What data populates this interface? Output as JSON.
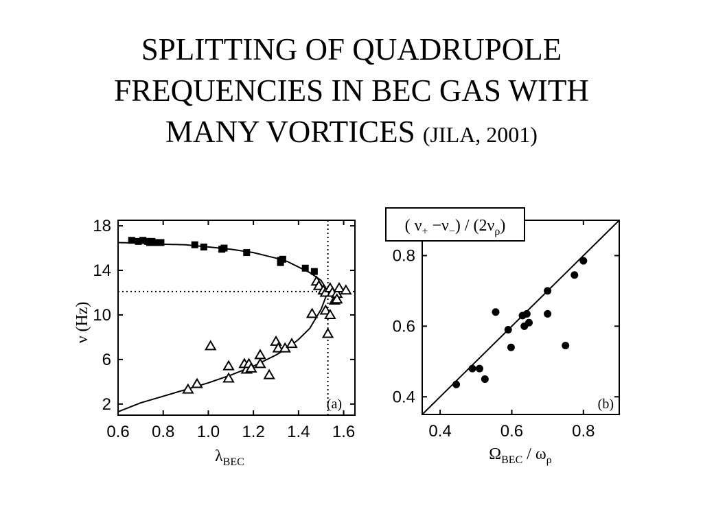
{
  "slide": {
    "title_line1": "SPLITTING OF QUADRUPOLE",
    "title_line2": "FREQUENCIES IN  BEC GAS WITH",
    "title_line3": "MANY VORTICES ",
    "title_source": "(JILA, 2001)"
  },
  "chart_data": [
    {
      "type": "scatter",
      "panel_label": "(a)",
      "xlabel_main": "λ",
      "xlabel_sub": "BEC",
      "ylabel": "ν (Hz)",
      "xlim": [
        0.6,
        1.65
      ],
      "ylim": [
        1,
        18.5
      ],
      "x_ticks": [
        0.6,
        0.8,
        1.0,
        1.2,
        1.4,
        1.6
      ],
      "x_tick_labels": [
        "0.6",
        "0.8",
        "1.0",
        "1.2",
        "1.4",
        "1.6"
      ],
      "y_ticks": [
        2,
        6,
        10,
        14,
        18
      ],
      "y_tick_labels": [
        "2",
        "6",
        "10",
        "14",
        "18"
      ],
      "reference_lines": {
        "vertical_x": 1.53,
        "horizontal_y": 12.1,
        "style": "dotted"
      },
      "series": [
        {
          "marker": "filled-square",
          "x": [
            0.66,
            0.69,
            0.71,
            0.73,
            0.74,
            0.75,
            0.77,
            0.79,
            0.94,
            0.98,
            1.06,
            1.07,
            1.17,
            1.32,
            1.32,
            1.33,
            1.43,
            1.47
          ],
          "y": [
            16.7,
            16.6,
            16.7,
            16.6,
            16.5,
            16.6,
            16.5,
            16.5,
            16.3,
            16.1,
            15.9,
            16.0,
            15.6,
            14.9,
            14.7,
            15.0,
            14.2,
            13.9
          ]
        },
        {
          "marker": "open-triangle",
          "x": [
            0.91,
            0.95,
            1.01,
            1.09,
            1.09,
            1.16,
            1.17,
            1.18,
            1.19,
            1.23,
            1.23,
            1.27,
            1.3,
            1.31,
            1.34,
            1.37,
            1.46,
            1.48,
            1.49,
            1.51,
            1.52,
            1.52,
            1.53,
            1.54,
            1.54,
            1.55,
            1.56,
            1.57,
            1.57,
            1.58,
            1.61
          ],
          "y": [
            3.3,
            3.8,
            7.2,
            4.3,
            5.4,
            5.6,
            5.1,
            5.6,
            5.2,
            5.6,
            6.4,
            4.6,
            7.6,
            7.0,
            7.0,
            7.4,
            10.1,
            13.0,
            12.6,
            12.2,
            10.4,
            12.0,
            8.3,
            10.0,
            12.4,
            12.0,
            11.3,
            11.9,
            11.4,
            12.4,
            12.2
          ]
        }
      ],
      "fit_curves": [
        {
          "x": [
            0.6,
            0.7,
            0.8,
            0.9,
            1.0,
            1.1,
            1.2,
            1.3,
            1.35,
            1.4,
            1.45,
            1.5,
            1.53
          ],
          "y": [
            16.5,
            16.45,
            16.35,
            16.3,
            16.1,
            15.9,
            15.6,
            15.1,
            14.8,
            14.3,
            13.8,
            13.1,
            12.1
          ]
        },
        {
          "x": [
            0.6,
            0.7,
            0.8,
            0.9,
            1.0,
            1.1,
            1.2,
            1.3,
            1.35,
            1.4,
            1.45,
            1.5,
            1.53
          ],
          "y": [
            1.3,
            2.1,
            2.7,
            3.3,
            3.9,
            4.6,
            5.4,
            6.4,
            7.0,
            7.8,
            8.8,
            10.5,
            12.1
          ]
        }
      ]
    },
    {
      "type": "scatter",
      "panel_label": "(b)",
      "ylabel_box": "( ν₊ −ν₋) / (2ν_ρ)",
      "box_parts": {
        "a": "( ν",
        "a_sub": "+",
        "b": " −ν",
        "b_sub": "−",
        "c": ") / (2ν",
        "c_sub": "ρ",
        "d": ")"
      },
      "xlabel_parts": {
        "a": "Ω",
        "a_sub": "BEC",
        "b": " / ω",
        "b_sub": "ρ"
      },
      "xlim": [
        0.35,
        0.9
      ],
      "ylim": [
        0.35,
        0.9
      ],
      "x_ticks": [
        0.4,
        0.6,
        0.8
      ],
      "x_tick_labels": [
        "0.4",
        "0.6",
        "0.8"
      ],
      "y_ticks": [
        0.4,
        0.6,
        0.8
      ],
      "y_tick_labels": [
        "0.4",
        "0.6",
        "0.8"
      ],
      "reference_line": {
        "x": [
          0.35,
          0.9
        ],
        "y": [
          0.35,
          0.9
        ]
      },
      "series": [
        {
          "marker": "filled-circle",
          "x": [
            0.445,
            0.49,
            0.51,
            0.525,
            0.555,
            0.59,
            0.598,
            0.63,
            0.635,
            0.642,
            0.648,
            0.7,
            0.7,
            0.75,
            0.775,
            0.8
          ],
          "y": [
            0.435,
            0.48,
            0.48,
            0.45,
            0.64,
            0.59,
            0.54,
            0.63,
            0.6,
            0.635,
            0.61,
            0.635,
            0.7,
            0.545,
            0.745,
            0.785
          ]
        }
      ]
    }
  ]
}
